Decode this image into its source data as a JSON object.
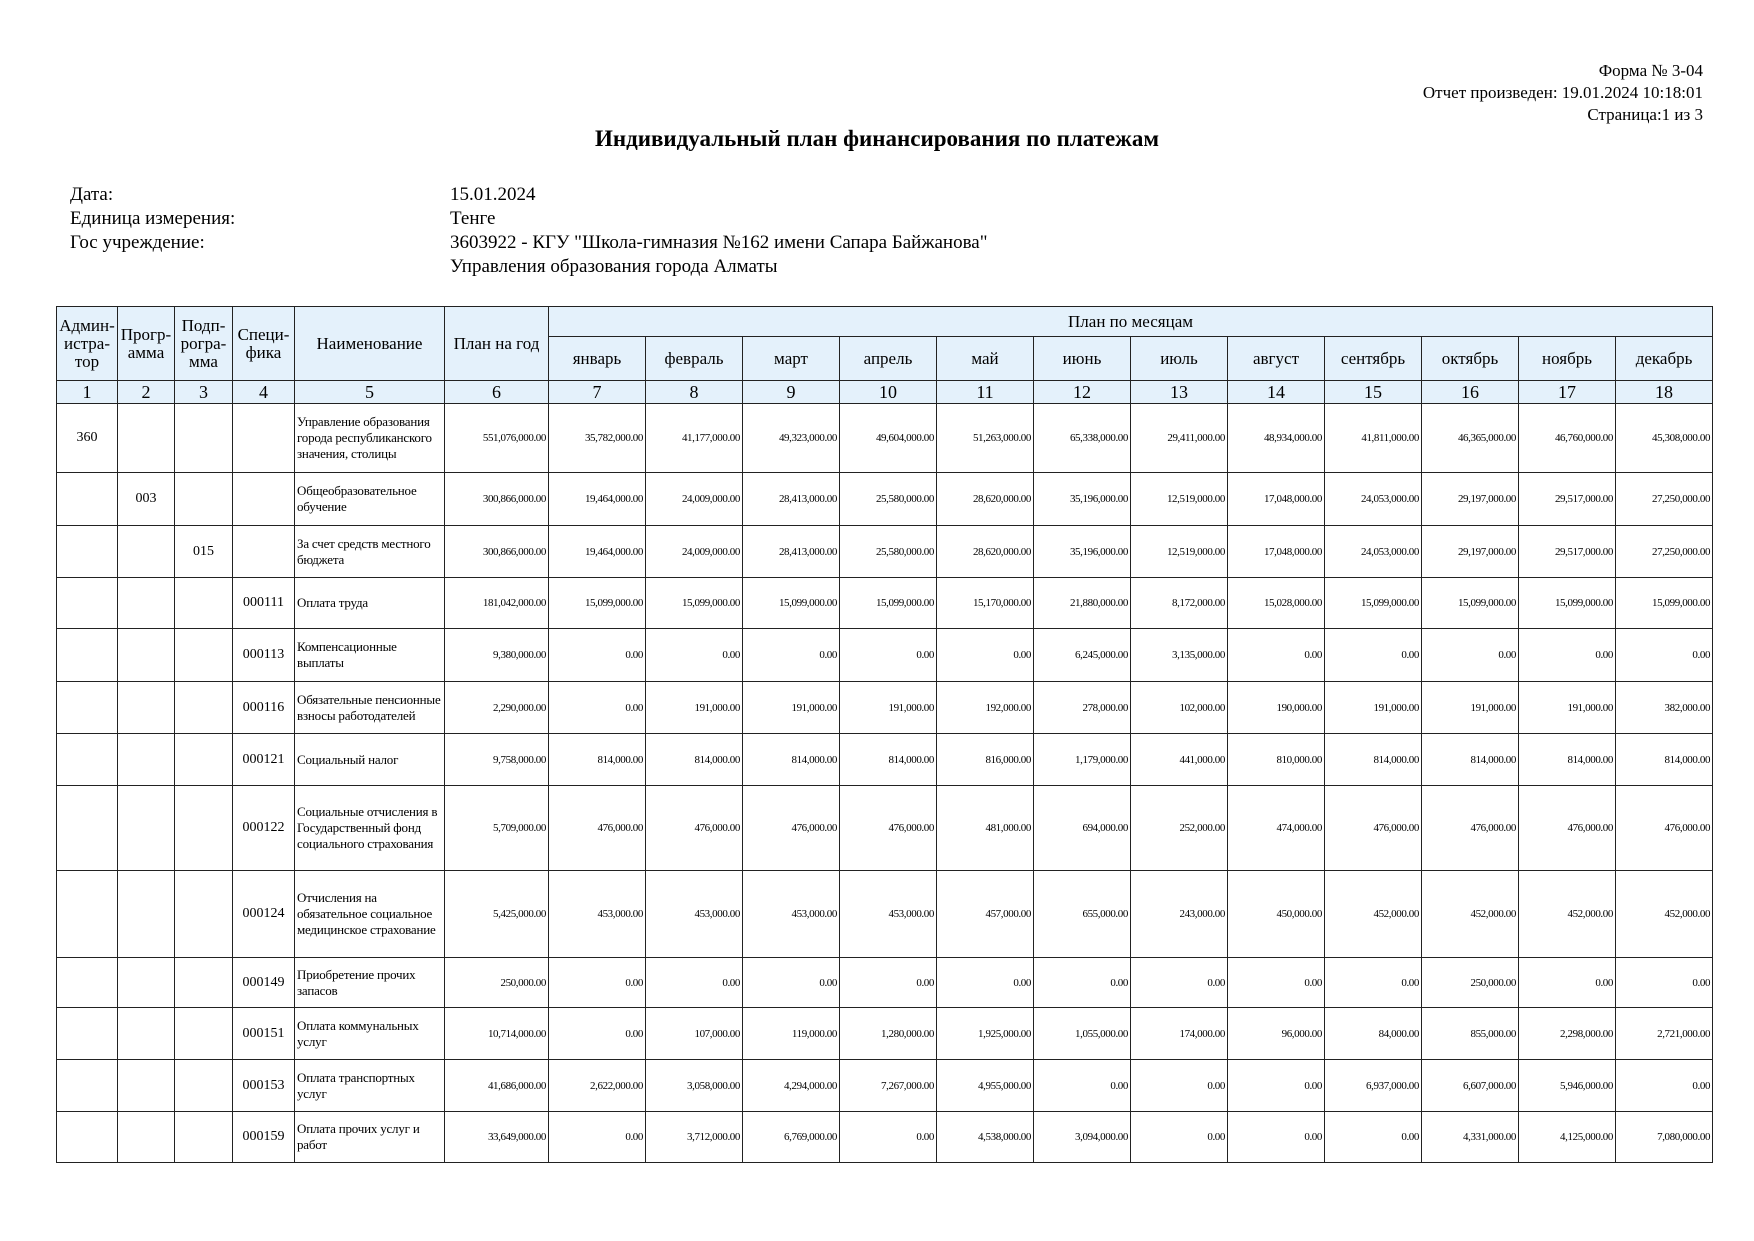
{
  "header": {
    "form_number": "Форма № 3-04",
    "report_generated": "Отчет произведен: 19.01.2024 10:18:01",
    "page": "Страница:1 из 3",
    "title": "Индивидуальный план финансирования по платежам"
  },
  "info": [
    {
      "label": "Дата:",
      "value": "15.01.2024"
    },
    {
      "label": "Единица измерения:",
      "value": "Тенге"
    },
    {
      "label": "Гос учреждение:",
      "value": "3603922 - КГУ \"Школа-гимназия №162 имени Сапара Байжанова\""
    },
    {
      "label": "",
      "value": "Управления образования города Алматы"
    }
  ],
  "table": {
    "columns": [
      "Админ­истра­тор",
      "Прогр­амма",
      "Подп­рогра­мма",
      "Специ­фика",
      "Наименование",
      "План на год"
    ],
    "months_group": "План по месяцам",
    "months": [
      "январь",
      "февраль",
      "март",
      "апрель",
      "май",
      "июнь",
      "июль",
      "август",
      "сентябрь",
      "октябрь",
      "ноябрь",
      "декабрь"
    ],
    "column_numbers": [
      "1",
      "2",
      "3",
      "4",
      "5",
      "6",
      "7",
      "8",
      "9",
      "10",
      "11",
      "12",
      "13",
      "14",
      "15",
      "16",
      "17",
      "18"
    ],
    "rows": [
      {
        "admin": "360",
        "program": "",
        "subprogram": "",
        "specific": "",
        "name": "Управление образования города республиканского значения, столицы",
        "year": "551,076,000.00",
        "months": [
          "35,782,000.00",
          "41,177,000.00",
          "49,323,000.00",
          "49,604,000.00",
          "51,263,000.00",
          "65,338,000.00",
          "29,411,000.00",
          "48,934,000.00",
          "41,811,000.00",
          "46,365,000.00",
          "46,760,000.00",
          "45,308,000.00"
        ]
      },
      {
        "admin": "",
        "program": "003",
        "subprogram": "",
        "specific": "",
        "name": "Общеобразовательное обучение",
        "year": "300,866,000.00",
        "months": [
          "19,464,000.00",
          "24,009,000.00",
          "28,413,000.00",
          "25,580,000.00",
          "28,620,000.00",
          "35,196,000.00",
          "12,519,000.00",
          "17,048,000.00",
          "24,053,000.00",
          "29,197,000.00",
          "29,517,000.00",
          "27,250,000.00"
        ]
      },
      {
        "admin": "",
        "program": "",
        "subprogram": "015",
        "specific": "",
        "name": "За счет средств местного бюджета",
        "year": "300,866,000.00",
        "months": [
          "19,464,000.00",
          "24,009,000.00",
          "28,413,000.00",
          "25,580,000.00",
          "28,620,000.00",
          "35,196,000.00",
          "12,519,000.00",
          "17,048,000.00",
          "24,053,000.00",
          "29,197,000.00",
          "29,517,000.00",
          "27,250,000.00"
        ]
      },
      {
        "admin": "",
        "program": "",
        "subprogram": "",
        "specific": "000111",
        "name": "Оплата труда",
        "year": "181,042,000.00",
        "months": [
          "15,099,000.00",
          "15,099,000.00",
          "15,099,000.00",
          "15,099,000.00",
          "15,170,000.00",
          "21,880,000.00",
          "8,172,000.00",
          "15,028,000.00",
          "15,099,000.00",
          "15,099,000.00",
          "15,099,000.00",
          "15,099,000.00"
        ]
      },
      {
        "admin": "",
        "program": "",
        "subprogram": "",
        "specific": "000113",
        "name": "Компенсационные выплаты",
        "year": "9,380,000.00",
        "months": [
          "0.00",
          "0.00",
          "0.00",
          "0.00",
          "0.00",
          "6,245,000.00",
          "3,135,000.00",
          "0.00",
          "0.00",
          "0.00",
          "0.00",
          "0.00"
        ]
      },
      {
        "admin": "",
        "program": "",
        "subprogram": "",
        "specific": "000116",
        "name": "Обязательные пенсионные взносы работодателей",
        "year": "2,290,000.00",
        "months": [
          "0.00",
          "191,000.00",
          "191,000.00",
          "191,000.00",
          "192,000.00",
          "278,000.00",
          "102,000.00",
          "190,000.00",
          "191,000.00",
          "191,000.00",
          "191,000.00",
          "382,000.00"
        ]
      },
      {
        "admin": "",
        "program": "",
        "subprogram": "",
        "specific": "000121",
        "name": "Социальный налог",
        "year": "9,758,000.00",
        "months": [
          "814,000.00",
          "814,000.00",
          "814,000.00",
          "814,000.00",
          "816,000.00",
          "1,179,000.00",
          "441,000.00",
          "810,000.00",
          "814,000.00",
          "814,000.00",
          "814,000.00",
          "814,000.00"
        ]
      },
      {
        "admin": "",
        "program": "",
        "subprogram": "",
        "specific": "000122",
        "name": "Социальные отчисления в Государственный фонд социального страхования",
        "year": "5,709,000.00",
        "months": [
          "476,000.00",
          "476,000.00",
          "476,000.00",
          "476,000.00",
          "481,000.00",
          "694,000.00",
          "252,000.00",
          "474,000.00",
          "476,000.00",
          "476,000.00",
          "476,000.00",
          "476,000.00"
        ]
      },
      {
        "admin": "",
        "program": "",
        "subprogram": "",
        "specific": "000124",
        "name": "Отчисления на обязательное социальное медицинское страхование",
        "year": "5,425,000.00",
        "months": [
          "453,000.00",
          "453,000.00",
          "453,000.00",
          "453,000.00",
          "457,000.00",
          "655,000.00",
          "243,000.00",
          "450,000.00",
          "452,000.00",
          "452,000.00",
          "452,000.00",
          "452,000.00"
        ]
      },
      {
        "admin": "",
        "program": "",
        "subprogram": "",
        "specific": "000149",
        "name": "Приобретение прочих запасов",
        "year": "250,000.00",
        "months": [
          "0.00",
          "0.00",
          "0.00",
          "0.00",
          "0.00",
          "0.00",
          "0.00",
          "0.00",
          "0.00",
          "250,000.00",
          "0.00",
          "0.00"
        ]
      },
      {
        "admin": "",
        "program": "",
        "subprogram": "",
        "specific": "000151",
        "name": "Оплата коммунальных услуг",
        "year": "10,714,000.00",
        "months": [
          "0.00",
          "107,000.00",
          "119,000.00",
          "1,280,000.00",
          "1,925,000.00",
          "1,055,000.00",
          "174,000.00",
          "96,000.00",
          "84,000.00",
          "855,000.00",
          "2,298,000.00",
          "2,721,000.00"
        ]
      },
      {
        "admin": "",
        "program": "",
        "subprogram": "",
        "specific": "000153",
        "name": "Оплата транспортных услуг",
        "year": "41,686,000.00",
        "months": [
          "2,622,000.00",
          "3,058,000.00",
          "4,294,000.00",
          "7,267,000.00",
          "4,955,000.00",
          "0.00",
          "0.00",
          "0.00",
          "6,937,000.00",
          "6,607,000.00",
          "5,946,000.00",
          "0.00"
        ]
      },
      {
        "admin": "",
        "program": "",
        "subprogram": "",
        "specific": "000159",
        "name": "Оплата прочих услуг и работ",
        "year": "33,649,000.00",
        "months": [
          "0.00",
          "3,712,000.00",
          "6,769,000.00",
          "0.00",
          "4,538,000.00",
          "3,094,000.00",
          "0.00",
          "0.00",
          "0.00",
          "4,331,000.00",
          "4,125,000.00",
          "7,080,000.00"
        ]
      }
    ]
  },
  "colors": {
    "header_bg": "#e4f1fb",
    "border": "#222222"
  }
}
